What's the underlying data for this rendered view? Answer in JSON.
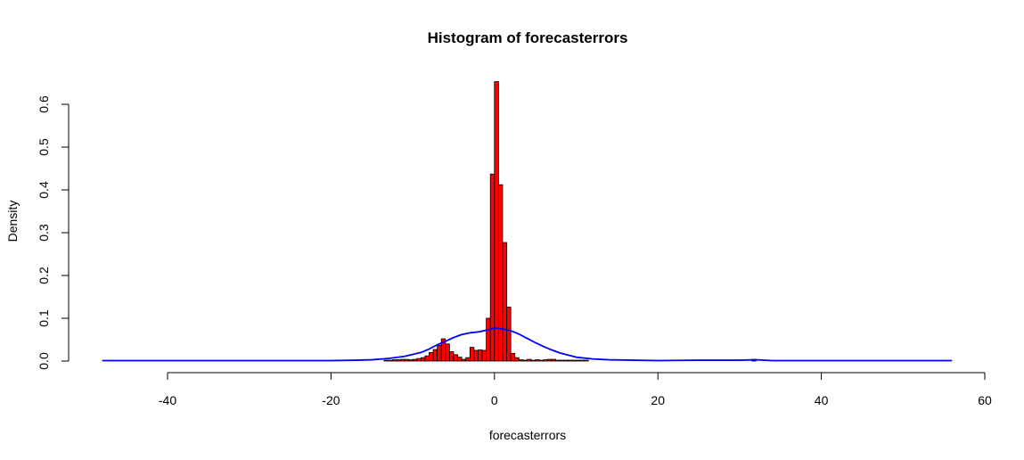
{
  "chart_data": {
    "type": "bar",
    "title": "Histogram of forecasterrors",
    "xlabel": "forecasterrors",
    "ylabel": "Density",
    "xlim": [
      -50,
      60
    ],
    "ylim": [
      0,
      0.6
    ],
    "x_ticks": [
      -40,
      -20,
      0,
      20,
      40,
      60
    ],
    "y_ticks": [
      0.0,
      0.1,
      0.2,
      0.3,
      0.4,
      0.5,
      0.6
    ],
    "x_tick_labels": [
      "-40",
      "-20",
      "0",
      "20",
      "40",
      "60"
    ],
    "y_tick_labels": [
      "0.0",
      "0.1",
      "0.2",
      "0.3",
      "0.4",
      "0.5",
      "0.6"
    ],
    "bin_width": 0.5,
    "bar_fill": "#ff0000",
    "bar_stroke": "#000000",
    "curve_color": "#0000ff",
    "histogram": {
      "bin_starts": [
        -13.5,
        -13,
        -12.5,
        -12,
        -11.5,
        -11,
        -10.5,
        -10,
        -9.5,
        -9,
        -8.5,
        -8,
        -7.5,
        -7,
        -6.5,
        -6,
        -5.5,
        -5,
        -4.5,
        -4,
        -3.5,
        -3,
        -2.5,
        -2,
        -1.5,
        -1,
        -0.5,
        0,
        0.5,
        1,
        1.5,
        2,
        2.5,
        3,
        3.5,
        4,
        4.5,
        5,
        5.5,
        6,
        6.5,
        7,
        7.5,
        8,
        8.5,
        9,
        9.5,
        10,
        10.5,
        11,
        31.5
      ],
      "densities": [
        0.002,
        0.002,
        0.003,
        0.003,
        0.004,
        0.004,
        0.003,
        0.004,
        0.006,
        0.008,
        0.012,
        0.02,
        0.027,
        0.037,
        0.052,
        0.04,
        0.022,
        0.015,
        0.009,
        0.004,
        0.008,
        0.032,
        0.025,
        0.026,
        0.025,
        0.1,
        0.437,
        0.653,
        0.412,
        0.277,
        0.126,
        0.018,
        0.008,
        0.003,
        0.002,
        0.004,
        0.002,
        0.003,
        0.002,
        0.003,
        0.004,
        0.004,
        0.002,
        0.002,
        0.002,
        0.002,
        0.002,
        0.002,
        0.002,
        0.002,
        0.004
      ]
    },
    "density_curve": {
      "x": [
        -48,
        -30,
        -20,
        -17,
        -15,
        -13,
        -11,
        -9,
        -8,
        -7,
        -6,
        -5,
        -4,
        -3,
        -2,
        -1,
        0,
        1,
        2,
        3,
        4,
        5,
        6,
        7,
        8,
        9,
        10,
        12,
        14,
        17,
        20,
        25,
        30,
        32,
        34,
        40,
        50,
        56
      ],
      "y": [
        0.001,
        0.001,
        0.001,
        0.002,
        0.003,
        0.006,
        0.011,
        0.02,
        0.028,
        0.038,
        0.046,
        0.055,
        0.062,
        0.066,
        0.068,
        0.072,
        0.077,
        0.075,
        0.071,
        0.063,
        0.053,
        0.043,
        0.034,
        0.026,
        0.019,
        0.014,
        0.009,
        0.005,
        0.003,
        0.002,
        0.001,
        0.002,
        0.002,
        0.003,
        0.001,
        0.001,
        0.001,
        0.001
      ]
    }
  }
}
